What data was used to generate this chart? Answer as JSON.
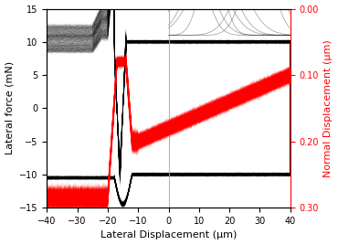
{
  "title": "",
  "xlabel": "Lateral Displacement (μm)",
  "ylabel_left": "Lateral force (mN)",
  "ylabel_right": "Normal Displacement (μm)",
  "xlim": [
    -40,
    40
  ],
  "ylim_left": [
    -15,
    15
  ],
  "x_ticks": [
    -40,
    -30,
    -20,
    -10,
    0,
    10,
    20,
    30,
    40
  ],
  "y_ticks_left": [
    -15,
    -10,
    -5,
    0,
    5,
    10,
    15
  ],
  "y_ticks_right_vals": [
    0.0,
    0.1,
    0.2,
    0.3
  ],
  "num_cycles": 500,
  "black_line_color": "#000000",
  "red_line_color": "#ff0000",
  "black_alpha": 0.06,
  "red_alpha": 0.1,
  "vline_color": "#ff8888",
  "vline_x": 0,
  "figsize": [
    3.7,
    2.68
  ],
  "dpi": 100,
  "seed": 42
}
